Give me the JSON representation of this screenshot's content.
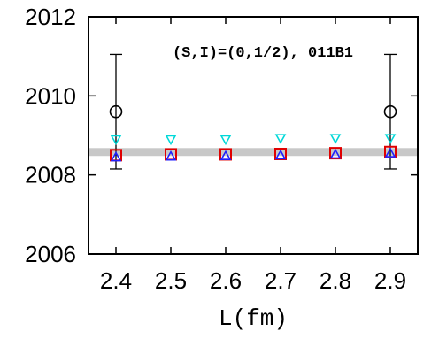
{
  "chart_data": {
    "type": "scatter",
    "title": "",
    "xlabel": "L(fm)",
    "ylabel": "",
    "annotation": "(S,I)=(0,1/2), 011B1",
    "xlim": [
      2.35,
      2.95
    ],
    "ylim": [
      2006,
      2012
    ],
    "xticks": [
      2.4,
      2.5,
      2.6,
      2.7,
      2.8,
      2.9
    ],
    "xtick_labels": [
      "2.4",
      "2.5",
      "2.6",
      "2.7",
      "2.8",
      "2.9"
    ],
    "yticks": [
      2006,
      2008,
      2010,
      2012
    ],
    "ytick_labels": [
      "2006",
      "2008",
      "2010",
      "2012"
    ],
    "band": {
      "y_low": 2008.48,
      "y_high": 2008.68,
      "color": "#c8c8c8"
    },
    "series": [
      {
        "marker": "open-circle",
        "color": "#000000",
        "x": [
          2.4,
          2.9
        ],
        "y": [
          2009.6,
          2009.6
        ],
        "yerr_low": [
          2008.15,
          2008.15
        ],
        "yerr_high": [
          2011.05,
          2011.05
        ]
      },
      {
        "marker": "open-triangle-down",
        "color": "#00d8d8",
        "x": [
          2.4,
          2.5,
          2.6,
          2.7,
          2.8,
          2.9
        ],
        "y": [
          2008.9,
          2008.9,
          2008.9,
          2008.93,
          2008.93,
          2008.93
        ]
      },
      {
        "marker": "open-square",
        "color": "#e00000",
        "x": [
          2.4,
          2.5,
          2.6,
          2.7,
          2.8,
          2.9
        ],
        "y": [
          2008.5,
          2008.52,
          2008.52,
          2008.53,
          2008.55,
          2008.58
        ]
      },
      {
        "marker": "open-triangle-up",
        "color": "#2020ff",
        "x": [
          2.4,
          2.5,
          2.6,
          2.7,
          2.8,
          2.9
        ],
        "y": [
          2008.45,
          2008.47,
          2008.48,
          2008.5,
          2008.52,
          2008.55
        ]
      }
    ]
  }
}
